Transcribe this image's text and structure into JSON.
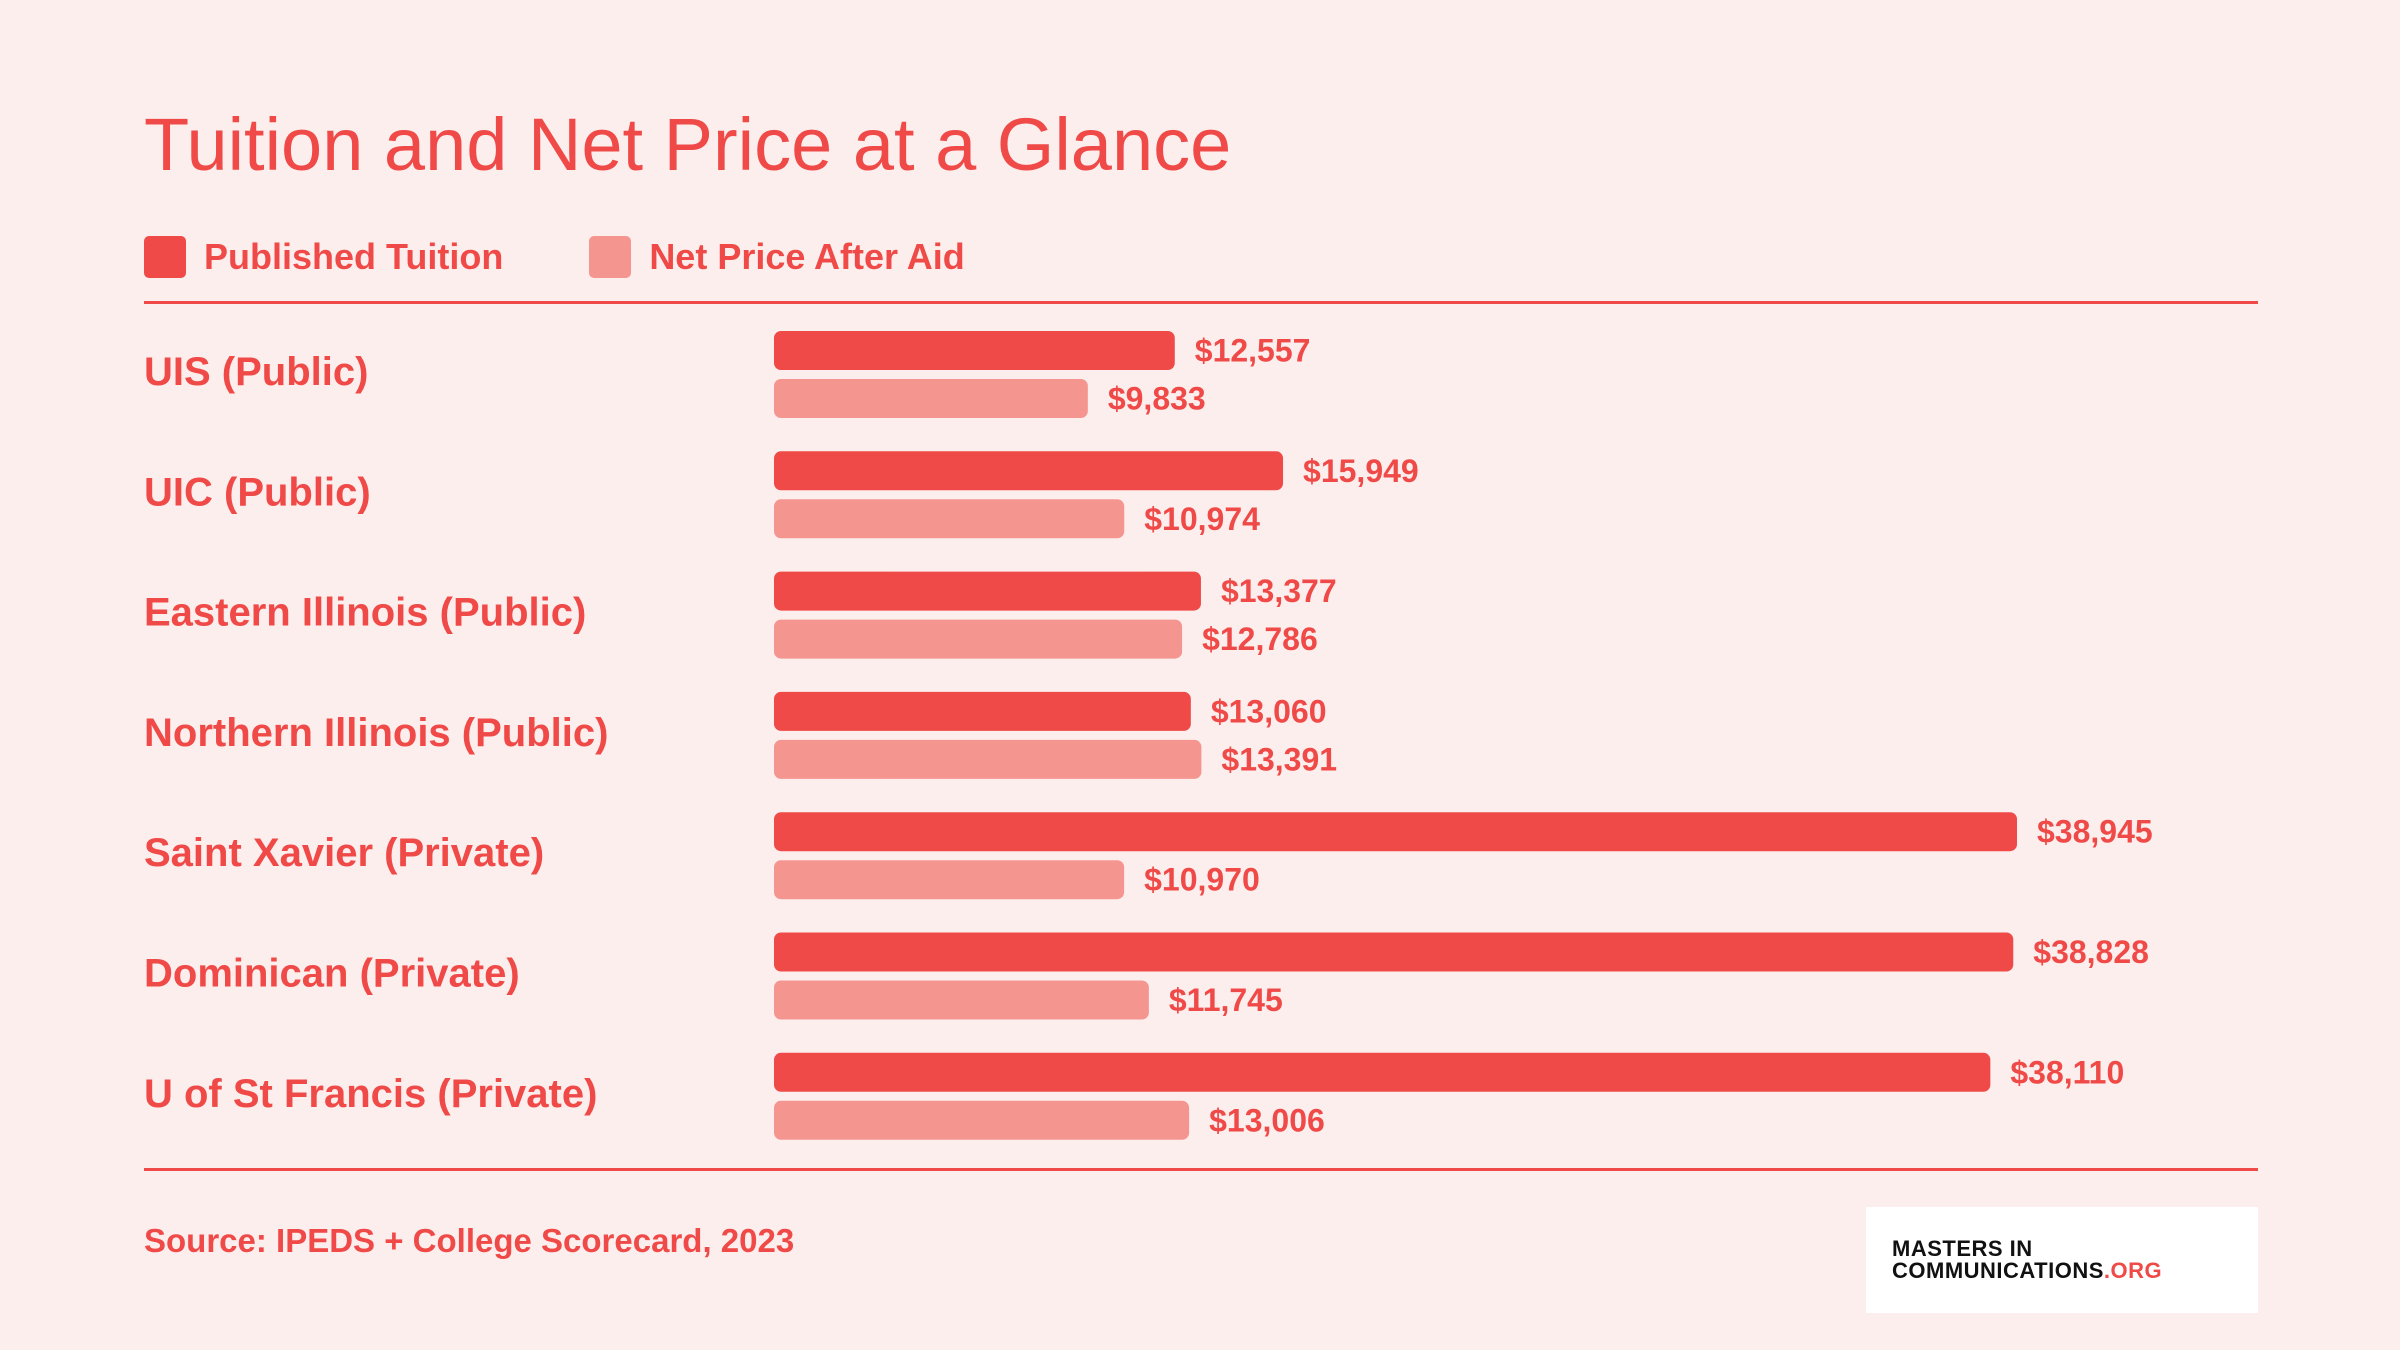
{
  "title": "Tuition and Net Price at a Glance",
  "legend": [
    {
      "label": "Published Tuition",
      "color": "#ef4a47"
    },
    {
      "label": "Net Price After Aid",
      "color": "#f5958f"
    }
  ],
  "source": "Source: IPEDS + College Scorecard, 2023",
  "logo": {
    "line1": "MASTERS IN",
    "line2_main": "COMMUNICATIONS",
    "line2_suffix": ".ORG"
  },
  "chart_data": {
    "type": "bar",
    "orientation": "horizontal",
    "categories": [
      "UIS (Public)",
      "UIC (Public)",
      "Eastern Illinois (Public)",
      "Northern Illinois (Public)",
      "Saint Xavier (Private)",
      "Dominican (Private)",
      "U of St Francis (Private)"
    ],
    "series": [
      {
        "name": "Published Tuition",
        "color": "#ef4a47",
        "values": [
          12557,
          15949,
          13377,
          13060,
          38945,
          38828,
          38110
        ],
        "labels": [
          "$12,557",
          "$15,949",
          "$13,377",
          "$13,060",
          "$38,945",
          "$38,828",
          "$38,110"
        ]
      },
      {
        "name": "Net Price After Aid",
        "color": "#f5958f",
        "values": [
          9833,
          10974,
          12786,
          13391,
          10970,
          11745,
          13006
        ],
        "labels": [
          "$9,833",
          "$10,974",
          "$12,786",
          "$13,391",
          "$10,970",
          "$11,745",
          "$13,006"
        ]
      }
    ],
    "title": "Tuition and Net Price at a Glance",
    "xlabel": "",
    "ylabel": "",
    "xlim": [
      0,
      38945
    ],
    "grid": false,
    "legend_position": "top-left"
  }
}
